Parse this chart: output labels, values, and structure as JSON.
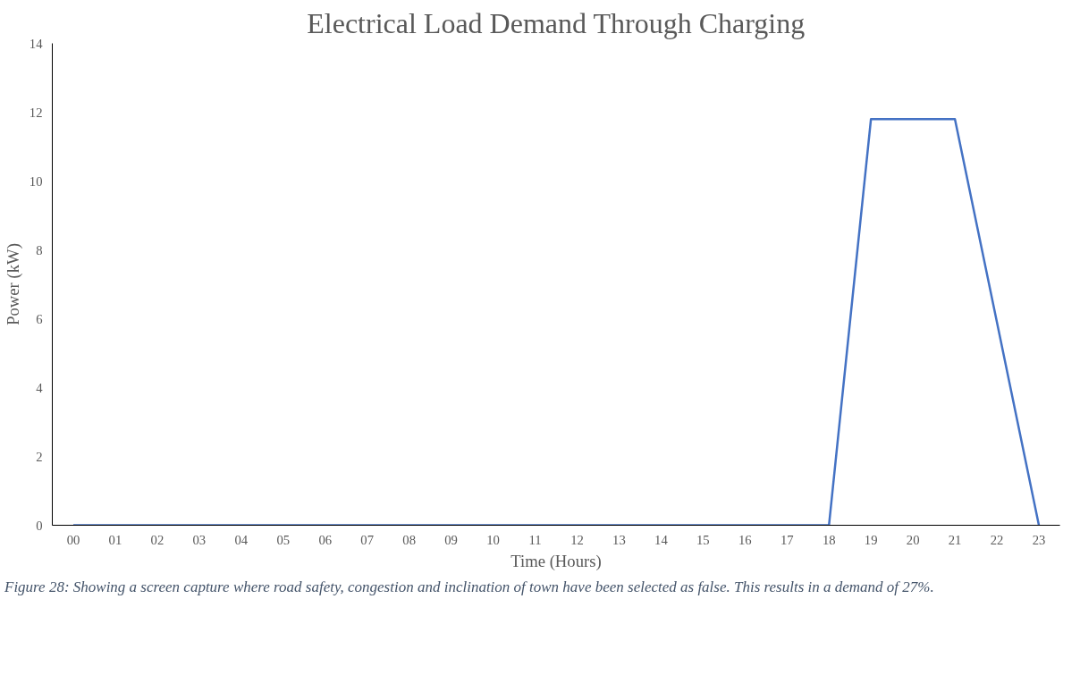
{
  "chart_data": {
    "type": "line",
    "title": "Electrical Load Demand Through Charging",
    "xlabel": "Time (Hours)",
    "ylabel": "Power (kW)",
    "categories": [
      "00",
      "01",
      "02",
      "03",
      "04",
      "05",
      "06",
      "07",
      "08",
      "09",
      "10",
      "11",
      "12",
      "13",
      "14",
      "15",
      "16",
      "17",
      "18",
      "19",
      "20",
      "21",
      "22",
      "23"
    ],
    "series": [
      {
        "color": "#4472c4",
        "values": [
          0,
          0,
          0,
          0,
          0,
          0,
          0,
          0,
          0,
          0,
          0,
          0,
          0,
          0,
          0,
          0,
          0,
          0,
          0,
          11.8,
          11.8,
          11.8,
          5.9,
          0
        ]
      }
    ],
    "ylim": [
      0,
      14
    ],
    "yticks": [
      0,
      2,
      4,
      6,
      8,
      10,
      12,
      14
    ],
    "grid": false,
    "marker": "none",
    "line_style": "solid",
    "annotations": [
      "Figure 28: Showing a screen capture where road safety, congestion and inclination of town have been selected as false. This results in a demand of 27%."
    ]
  }
}
